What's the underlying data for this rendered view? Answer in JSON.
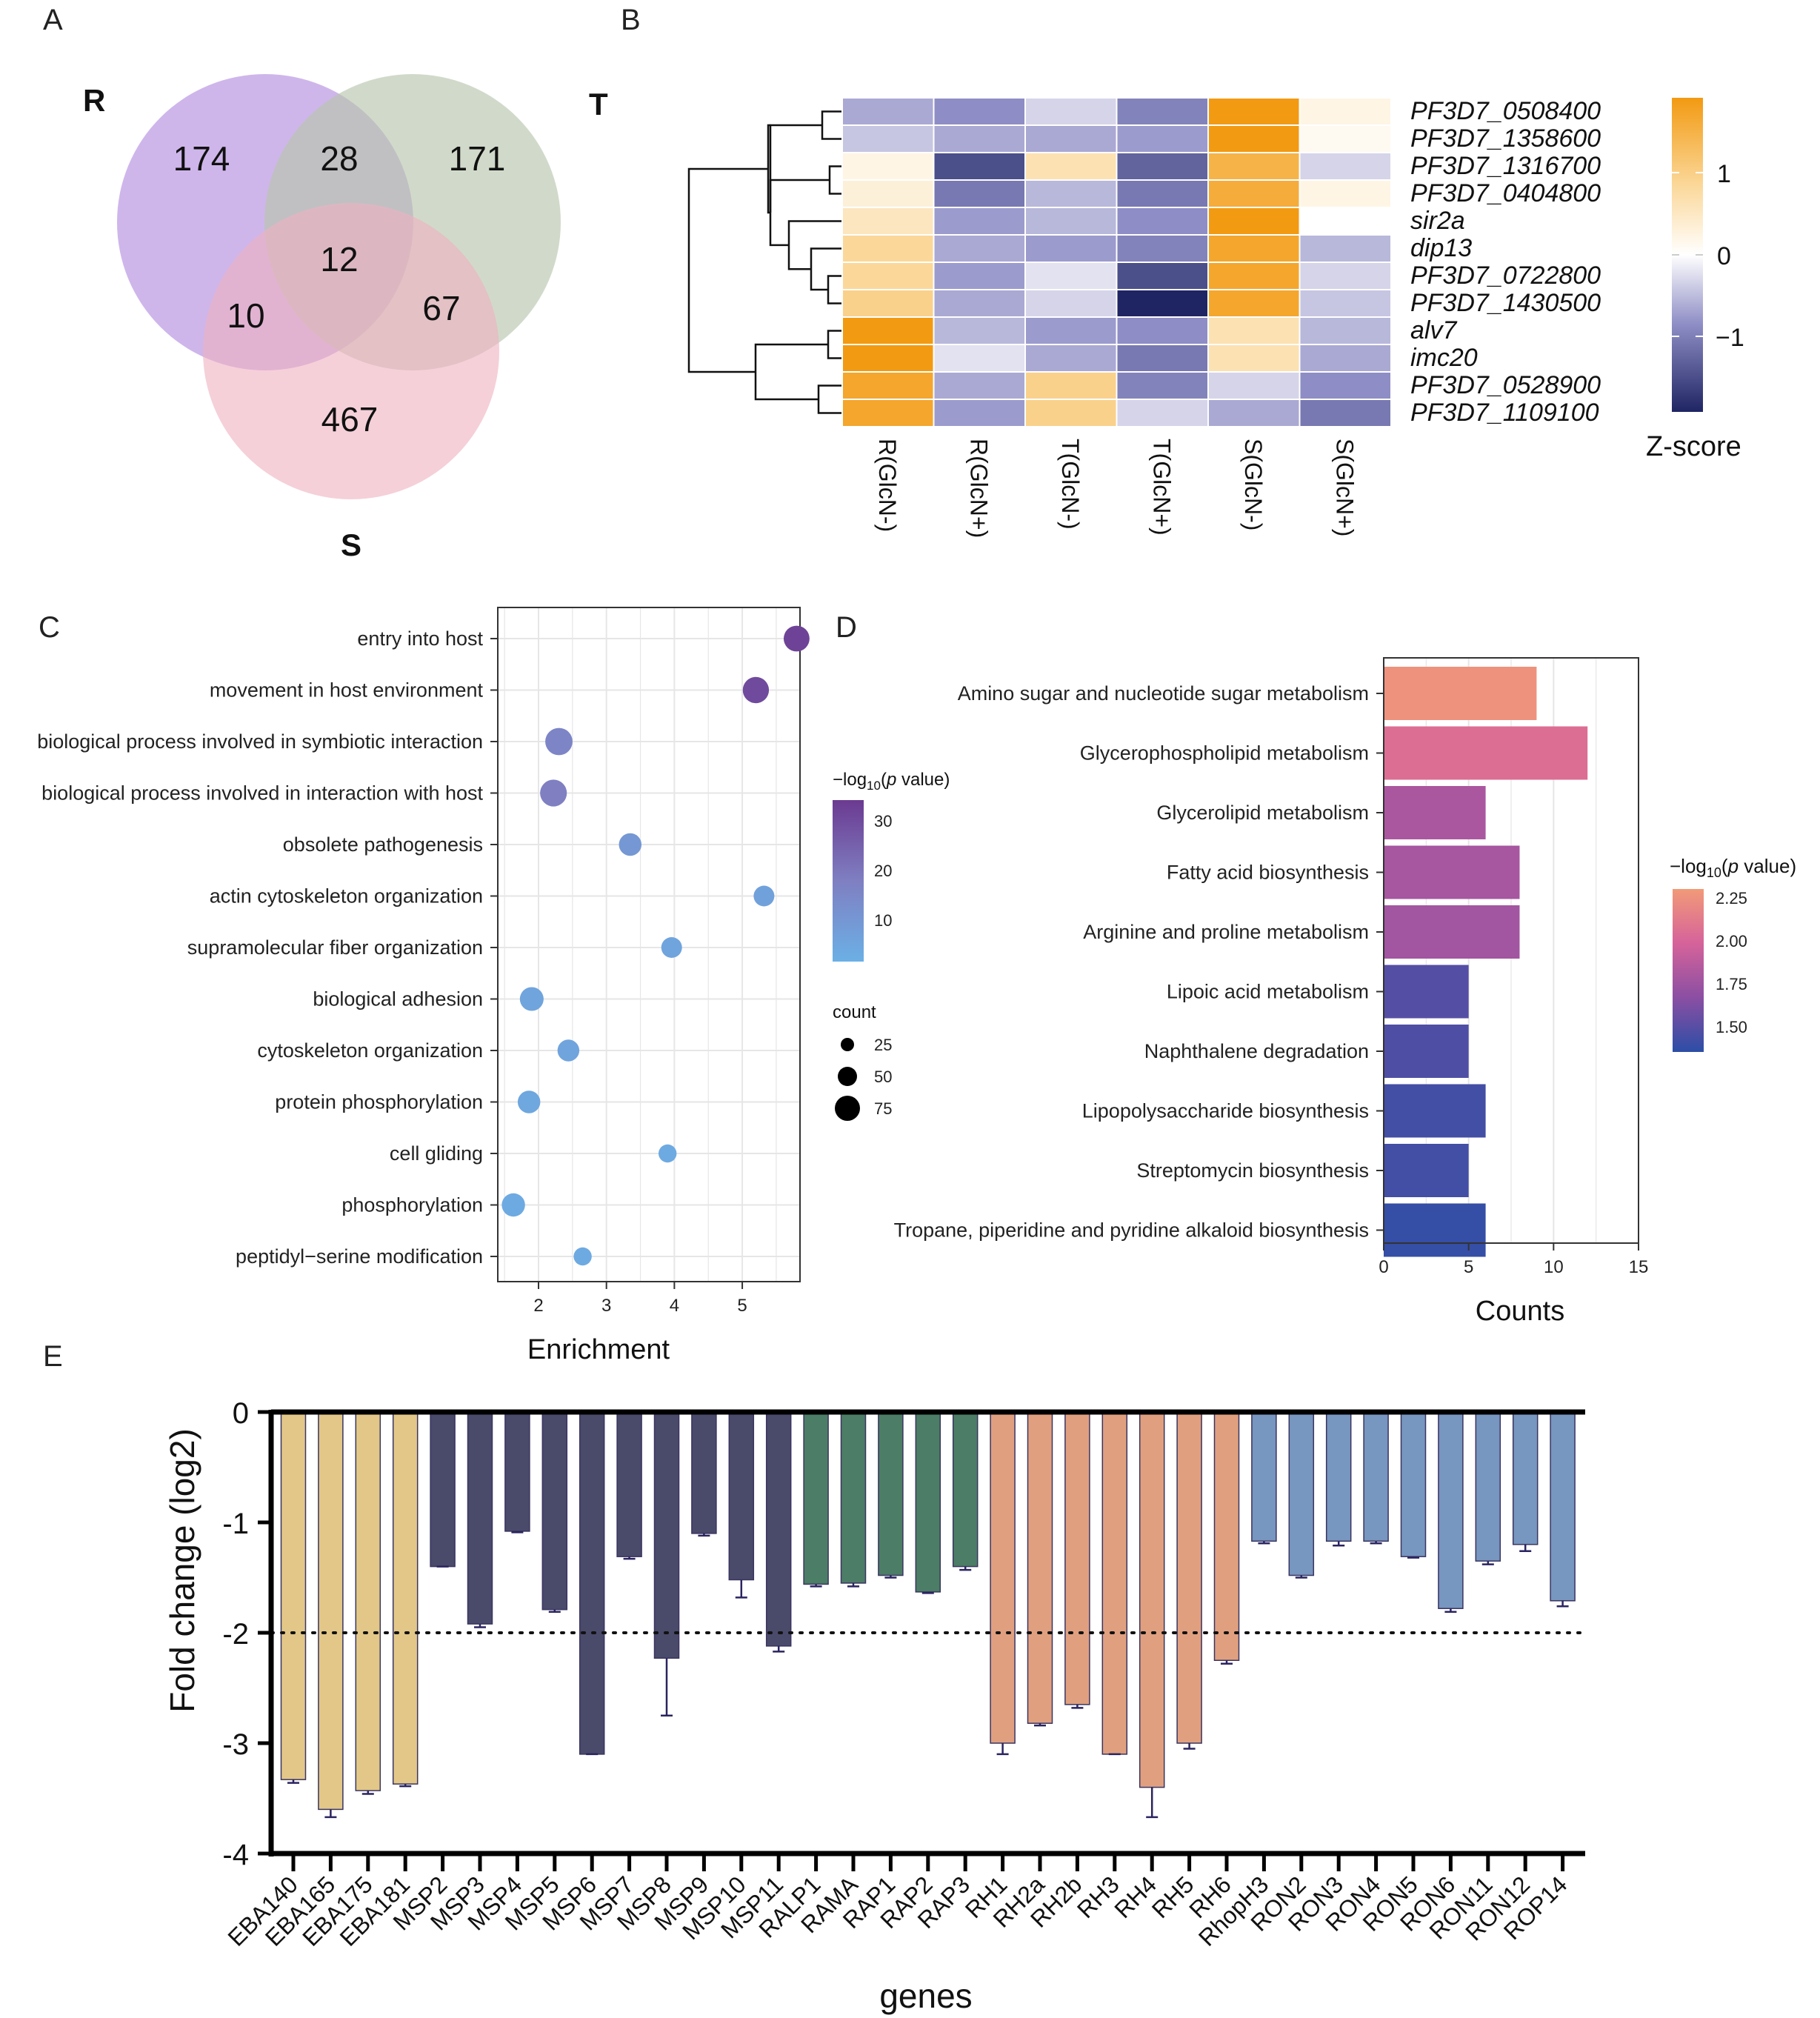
{
  "panels": {
    "A": {
      "letter": "A",
      "sets": [
        "R",
        "T",
        "S"
      ],
      "regions": [
        {
          "name": "R only",
          "value": "174"
        },
        {
          "name": "R∩T",
          "value": "28"
        },
        {
          "name": "T only",
          "value": "171"
        },
        {
          "name": "R∩T∩S",
          "value": "12"
        },
        {
          "name": "R∩S",
          "value": "10"
        },
        {
          "name": "T∩S",
          "value": "67"
        },
        {
          "name": "S only",
          "value": "467"
        }
      ],
      "colors": {
        "R": "#b48fe0",
        "T": "#b9c6ad",
        "S": "#eeb0c0"
      }
    },
    "B": {
      "letter": "B",
      "colorbar_title": "Z-score",
      "colorbar_ticks": [
        "1",
        "0",
        "−1"
      ],
      "colors": {
        "high": "#f29a12",
        "mid": "#ffffff",
        "low": "#1f2563"
      }
    },
    "C": {
      "letter": "C"
    },
    "D": {
      "letter": "D"
    },
    "E": {
      "letter": "E"
    }
  },
  "chart_data": [
    {
      "panel": "B",
      "type": "heatmap",
      "rows": [
        "PF3D7_0508400",
        "PF3D7_1358600",
        "PF3D7_1316700",
        "PF3D7_0404800",
        "sir2a",
        "dip13",
        "PF3D7_0722800",
        "PF3D7_1430500",
        "alv7",
        "imc20",
        "PF3D7_0528900",
        "PF3D7_1109100"
      ],
      "columns": [
        "R(GlcN-)",
        "R(GlcN+)",
        "T(GlcN-)",
        "T(GlcN+)",
        "S(GlcN-)",
        "S(GlcN+)"
      ],
      "values": [
        [
          -0.6,
          -0.8,
          -0.3,
          -0.9,
          1.8,
          0.2
        ],
        [
          -0.4,
          -0.6,
          -0.6,
          -0.7,
          1.8,
          0.1
        ],
        [
          0.2,
          -1.4,
          0.6,
          -1.2,
          1.4,
          -0.3
        ],
        [
          0.3,
          -1.0,
          -0.5,
          -1.0,
          1.5,
          0.2
        ],
        [
          0.5,
          -0.7,
          -0.5,
          -0.8,
          1.8,
          0.0
        ],
        [
          0.8,
          -0.6,
          -0.7,
          -0.9,
          1.6,
          -0.5
        ],
        [
          0.8,
          -0.7,
          -0.2,
          -1.4,
          1.6,
          -0.3
        ],
        [
          0.9,
          -0.6,
          -0.3,
          -1.8,
          1.6,
          -0.4
        ],
        [
          1.8,
          -0.5,
          -0.7,
          -0.8,
          0.6,
          -0.5
        ],
        [
          1.8,
          -0.2,
          -0.6,
          -1.0,
          0.6,
          -0.6
        ],
        [
          1.6,
          -0.6,
          0.9,
          -0.9,
          -0.3,
          -0.8
        ],
        [
          1.6,
          -0.7,
          0.9,
          -0.3,
          -0.6,
          -1.0
        ]
      ],
      "zlim": [
        -1.8,
        1.8
      ],
      "colorbar_title": "Z-score"
    },
    {
      "panel": "C",
      "type": "scatter",
      "xlabel": "Enrichment",
      "x_ticks": [
        "2",
        "3",
        "4",
        "5"
      ],
      "xlim": [
        1.4,
        5.85
      ],
      "categories": [
        "entry into host",
        "movement in host environment",
        "biological process involved in symbiotic interaction",
        "biological process involved in interaction with host",
        "obsolete pathogenesis",
        "actin cytoskeleton organization",
        "supramolecular fiber organization",
        "biological adhesion",
        "cytoskeleton organization",
        "protein phosphorylation",
        "cell gliding",
        "phosphorylation",
        "peptidyl−serine modification"
      ],
      "enrichment": [
        5.8,
        5.2,
        2.3,
        2.22,
        3.35,
        5.32,
        3.96,
        1.9,
        2.44,
        1.86,
        3.9,
        1.63,
        2.65
      ],
      "count": [
        40,
        42,
        48,
        45,
        25,
        18,
        18,
        30,
        22,
        25,
        10,
        28,
        10
      ],
      "neglog10p": [
        32,
        30,
        16,
        18,
        10,
        7,
        6,
        6,
        6,
        5,
        4,
        4,
        4
      ],
      "color_legend_title": "−log10(p value)",
      "color_ticks": [
        "30",
        "20",
        "10"
      ],
      "size_legend_title": "count",
      "size_ticks": [
        "25",
        "50",
        "75"
      ],
      "color_range": [
        2,
        34
      ]
    },
    {
      "panel": "D",
      "type": "bar",
      "orientation": "horizontal",
      "xlabel": "Counts",
      "x_ticks": [
        "0",
        "5",
        "10",
        "15"
      ],
      "xlim": [
        0,
        15
      ],
      "categories": [
        "Amino sugar and nucleotide sugar metabolism",
        "Glycerophospholipid metabolism",
        "Glycerolipid metabolism",
        "Fatty acid biosynthesis",
        "Arginine and proline metabolism",
        "Lipoic acid metabolism",
        "Naphthalene degradation",
        "Lipopolysaccharide biosynthesis",
        "Streptomycin biosynthesis",
        "Tropane, piperidine and pyridine alkaloid biosynthesis"
      ],
      "values": [
        9,
        12,
        6,
        8,
        8,
        5,
        5,
        6,
        5,
        6
      ],
      "neglog10p": [
        2.3,
        2.08,
        1.82,
        1.8,
        1.78,
        1.49,
        1.47,
        1.43,
        1.43,
        1.38
      ],
      "color_legend_title": "−log10(p value)",
      "color_ticks": [
        "2.25",
        "2.00",
        "1.75",
        "1.50"
      ],
      "color_range": [
        1.35,
        2.35
      ]
    },
    {
      "panel": "E",
      "type": "bar",
      "xlabel": "genes",
      "ylabel": "Fold change (log2)",
      "ylim": [
        -4,
        0
      ],
      "y_ticks": [
        "0",
        "-1",
        "-2",
        "-3",
        "-4"
      ],
      "threshold": -2,
      "categories": [
        "EBA140",
        "EBA165",
        "EBA175",
        "EBA181",
        "MSP2",
        "MSP3",
        "MSP4",
        "MSP5",
        "MSP6",
        "MSP7",
        "MSP8",
        "MSP9",
        "MSP10",
        "MSP11",
        "RALP1",
        "RAMA",
        "RAP1",
        "RAP2",
        "RAP3",
        "RH1",
        "RH2a",
        "RH2b",
        "RH3",
        "RH4",
        "RH5",
        "RH6",
        "RhopH3",
        "RON2",
        "RON3",
        "RON4",
        "RON5",
        "RON6",
        "RON11",
        "RON12",
        "ROP14"
      ],
      "values": [
        -3.33,
        -3.6,
        -3.43,
        -3.37,
        -1.4,
        -1.92,
        -1.08,
        -1.79,
        -3.1,
        -1.31,
        -2.23,
        -1.1,
        -1.52,
        -2.12,
        -1.56,
        -1.55,
        -1.48,
        -1.63,
        -1.4,
        -3.0,
        -2.82,
        -2.65,
        -3.1,
        -3.4,
        -3.0,
        -2.25,
        -1.17,
        -1.48,
        -1.17,
        -1.17,
        -1.31,
        -1.78,
        -1.35,
        -1.2,
        -1.71
      ],
      "errors": [
        0.03,
        0.07,
        0.03,
        0.02,
        0.0,
        0.03,
        0.01,
        0.02,
        0.0,
        0.02,
        0.52,
        0.02,
        0.16,
        0.05,
        0.02,
        0.03,
        0.02,
        0.01,
        0.03,
        0.1,
        0.02,
        0.03,
        0.0,
        0.27,
        0.05,
        0.03,
        0.02,
        0.02,
        0.04,
        0.02,
        0.01,
        0.03,
        0.03,
        0.06,
        0.05
      ],
      "groups": [
        {
          "name": "EBA",
          "color": "#e2c788",
          "count": 4
        },
        {
          "name": "MSP",
          "color": "#4a4a6b",
          "count": 10
        },
        {
          "name": "RAP",
          "color": "#4c7d66",
          "count": 5
        },
        {
          "name": "RH",
          "color": "#e0a080",
          "count": 7
        },
        {
          "name": "RON",
          "color": "#7796c0",
          "count": 9
        }
      ]
    }
  ]
}
